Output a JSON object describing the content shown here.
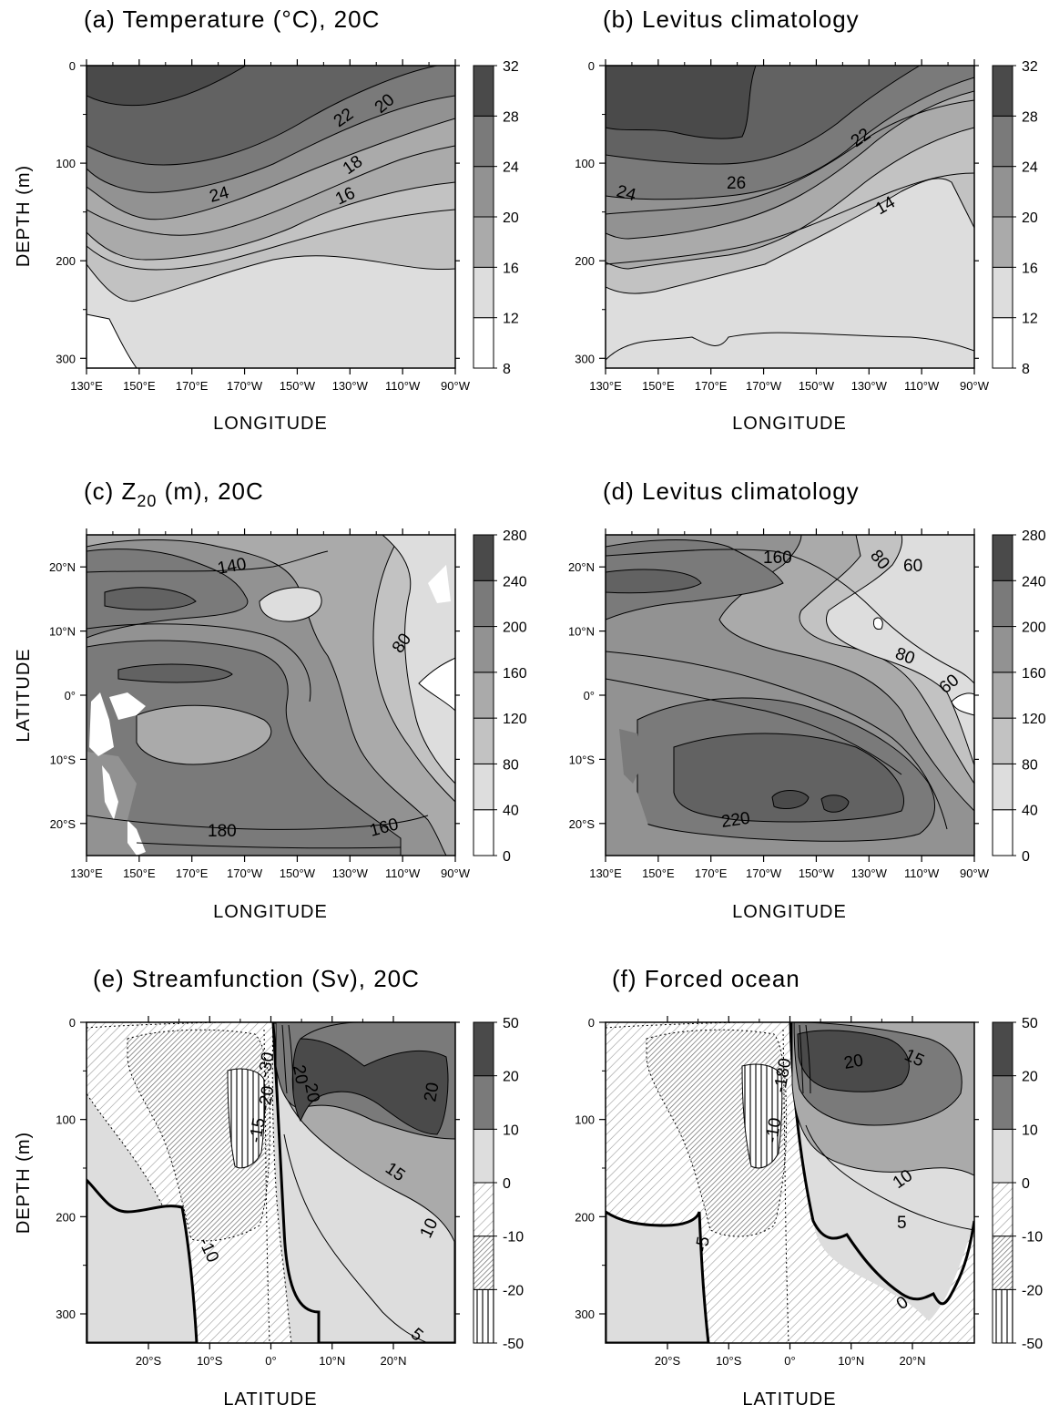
{
  "chart_data": [
    {
      "panel": "a",
      "type": "heatmap",
      "subtype": "filled contour",
      "title": "(a) Temperature (°C), 20C",
      "xlabel": "LONGITUDE",
      "ylabel": "DEPTH (m)",
      "xlim": [
        "130°E",
        "90°W"
      ],
      "ylim": [
        310,
        0
      ],
      "xticks": [
        "130°E",
        "150°E",
        "170°E",
        "170°W",
        "150°W",
        "130°W",
        "110°W",
        "90°W"
      ],
      "yticks": [
        "0",
        "100",
        "200",
        "300"
      ],
      "colorbar": {
        "levels": [
          "8",
          "12",
          "16",
          "20",
          "24",
          "28",
          "32"
        ]
      },
      "contour_labels": [
        "22",
        "20",
        "24",
        "18",
        "16"
      ],
      "isotherm_depth_m": {
        "longitudes": [
          "130°E",
          "150°E",
          "170°E",
          "170°W",
          "150°W",
          "130°W",
          "110°W",
          "90°W"
        ],
        "28": [
          60,
          70,
          40,
          8,
          0,
          0,
          0,
          0
        ],
        "24": [
          125,
          140,
          135,
          120,
          95,
          75,
          45,
          25
        ],
        "20": [
          170,
          185,
          170,
          150,
          120,
          90,
          60,
          40
        ],
        "16": [
          215,
          250,
          220,
          185,
          150,
          120,
          90,
          65
        ],
        "12": [
          265,
          310,
          290,
          250,
          215,
          200,
          200,
          210
        ]
      }
    },
    {
      "panel": "b",
      "type": "heatmap",
      "subtype": "filled contour",
      "title": "(b) Levitus climatology",
      "xlabel": "LONGITUDE",
      "ylabel": "DEPTH (m)",
      "xlim": [
        "130°E",
        "90°W"
      ],
      "ylim": [
        310,
        0
      ],
      "xticks": [
        "130°E",
        "150°E",
        "170°E",
        "170°W",
        "150°W",
        "130°W",
        "110°W",
        "90°W"
      ],
      "yticks": [
        "0",
        "100",
        "200",
        "300"
      ],
      "colorbar": {
        "levels": [
          "8",
          "12",
          "16",
          "20",
          "24",
          "28",
          "32"
        ]
      },
      "contour_labels": [
        "22",
        "26",
        "24",
        "14"
      ],
      "isotherm_depth_m": {
        "longitudes": [
          "130°E",
          "150°E",
          "170°E",
          "170°W",
          "150°W",
          "130°W",
          "110°W",
          "90°W"
        ],
        "28": [
          65,
          80,
          80,
          40,
          10,
          0,
          0,
          0
        ],
        "24": [
          130,
          140,
          135,
          115,
          95,
          70,
          40,
          20
        ],
        "20": [
          175,
          190,
          185,
          160,
          125,
          100,
          70,
          50
        ],
        "16": [
          235,
          240,
          220,
          200,
          170,
          140,
          110,
          90
        ],
        "12": [
          290,
          290,
          295,
          275,
          270,
          270,
          275,
          290
        ]
      }
    },
    {
      "panel": "c",
      "type": "heatmap",
      "subtype": "filled contour",
      "title": "(c) Z20 (m), 20C",
      "title_parts": {
        "before": "(c) Z",
        "subscript": "20",
        "after": " (m), 20C"
      },
      "xlabel": "LONGITUDE",
      "ylabel": "LATITUDE",
      "xticks": [
        "130°E",
        "150°E",
        "170°E",
        "170°W",
        "150°W",
        "130°W",
        "110°W",
        "90°W"
      ],
      "yticks": [
        "20°N",
        "10°N",
        "0°",
        "10°S",
        "20°S"
      ],
      "colorbar": {
        "levels": [
          "0",
          "40",
          "80",
          "120",
          "160",
          "200",
          "240",
          "280"
        ]
      },
      "contour_labels": [
        "140",
        "80",
        "180",
        "160"
      ]
    },
    {
      "panel": "d",
      "type": "heatmap",
      "subtype": "filled contour",
      "title": "(d) Levitus climatology",
      "xlabel": "LONGITUDE",
      "ylabel": "",
      "xticks": [
        "130°E",
        "150°E",
        "170°E",
        "170°W",
        "150°W",
        "130°W",
        "110°W",
        "90°W"
      ],
      "yticks": [
        "20°N",
        "10°N",
        "0°",
        "10°S",
        "20°S"
      ],
      "colorbar": {
        "levels": [
          "0",
          "40",
          "80",
          "120",
          "160",
          "200",
          "240",
          "280"
        ]
      },
      "contour_labels": [
        "160",
        "80",
        "60",
        "80",
        "60",
        "220"
      ]
    },
    {
      "panel": "e",
      "type": "heatmap",
      "subtype": "filled contour",
      "title": "(e) Streamfunction (Sv), 20C",
      "xlabel": "LATITUDE",
      "ylabel": "DEPTH (m)",
      "xticks": [
        "20°S",
        "10°S",
        "0°",
        "10°N",
        "20°N"
      ],
      "yticks": [
        "0",
        "100",
        "200",
        "300"
      ],
      "colorbar": {
        "levels": [
          "-50",
          "-20",
          "-10",
          "0",
          "10",
          "20",
          "50"
        ]
      },
      "contour_labels": [
        "20",
        "20",
        "20",
        "-15",
        "-20",
        "-30",
        "15",
        "10",
        "-10",
        "5"
      ]
    },
    {
      "panel": "f",
      "type": "heatmap",
      "subtype": "filled contour",
      "title": "(f) Forced ocean",
      "xlabel": "LATITUDE",
      "ylabel": "",
      "xticks": [
        "20°S",
        "10°S",
        "0°",
        "10°N",
        "20°N"
      ],
      "yticks": [
        "0",
        "100",
        "200",
        "300"
      ],
      "colorbar": {
        "levels": [
          "-50",
          "-20",
          "-10",
          "0",
          "10",
          "20",
          "50"
        ]
      },
      "contour_labels": [
        "15",
        "20",
        "-10",
        "-180",
        "10",
        "5",
        "-5",
        "0"
      ]
    }
  ]
}
